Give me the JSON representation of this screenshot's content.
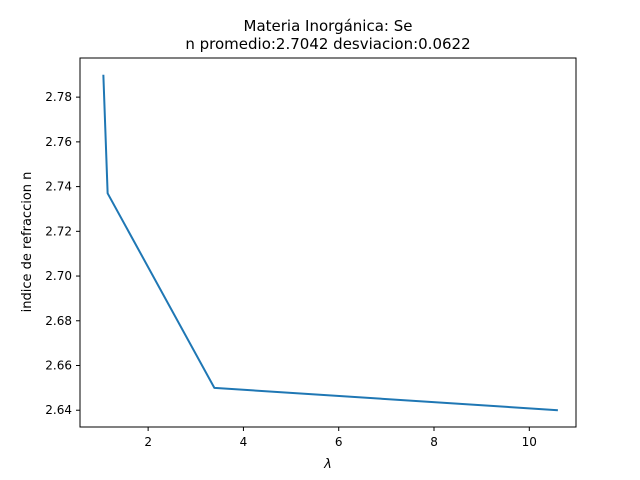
{
  "chart_data": {
    "type": "line",
    "title": "Materia Inorgánica: Se",
    "subtitle": "n promedio:2.7042 desviacion:0.0622",
    "xlabel": "λ",
    "ylabel": "indice de refraccion n",
    "xlim": [
      0.57,
      10.98
    ],
    "ylim": [
      2.6325,
      2.7975
    ],
    "xticks": [
      2,
      4,
      6,
      8,
      10
    ],
    "yticks": [
      2.64,
      2.66,
      2.68,
      2.7,
      2.72,
      2.74,
      2.76,
      2.78
    ],
    "ytick_labels": [
      "2.64",
      "2.66",
      "2.68",
      "2.70",
      "2.72",
      "2.74",
      "2.76",
      "2.78"
    ],
    "grid": false,
    "series": [
      {
        "color": "#1f77b4",
        "x": [
          1.06,
          1.15,
          3.39,
          10.6
        ],
        "y": [
          2.79,
          2.737,
          2.65,
          2.64
        ]
      }
    ]
  }
}
